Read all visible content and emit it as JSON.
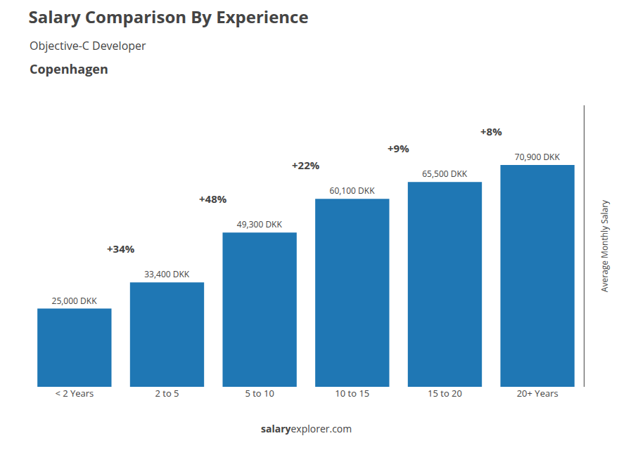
{
  "chart_data": {
    "type": "bar",
    "title": "Salary Comparison By Experience",
    "subtitle": [
      "Objective-C Developer",
      "Copenhagen"
    ],
    "ylabel": "Average Monthly Salary",
    "categories": [
      "< 2 Years",
      "2 to 5",
      "5 to 10",
      "10 to 15",
      "15 to 20",
      "20+ Years"
    ],
    "values": [
      25000,
      33400,
      49300,
      60100,
      65500,
      70900
    ],
    "value_labels": [
      "25,000 DKK",
      "33,400 DKK",
      "49,300 DKK",
      "60,100 DKK",
      "65,500 DKK",
      "70,900 DKK"
    ],
    "data_labels": true,
    "ylim": [
      0,
      90000
    ],
    "tick_labels": "x",
    "grid": false,
    "annotations": [
      "+34%",
      "+48%",
      "+22%",
      "+9%",
      "+8%"
    ],
    "footer": [
      "salary",
      "explorer.com"
    ]
  }
}
